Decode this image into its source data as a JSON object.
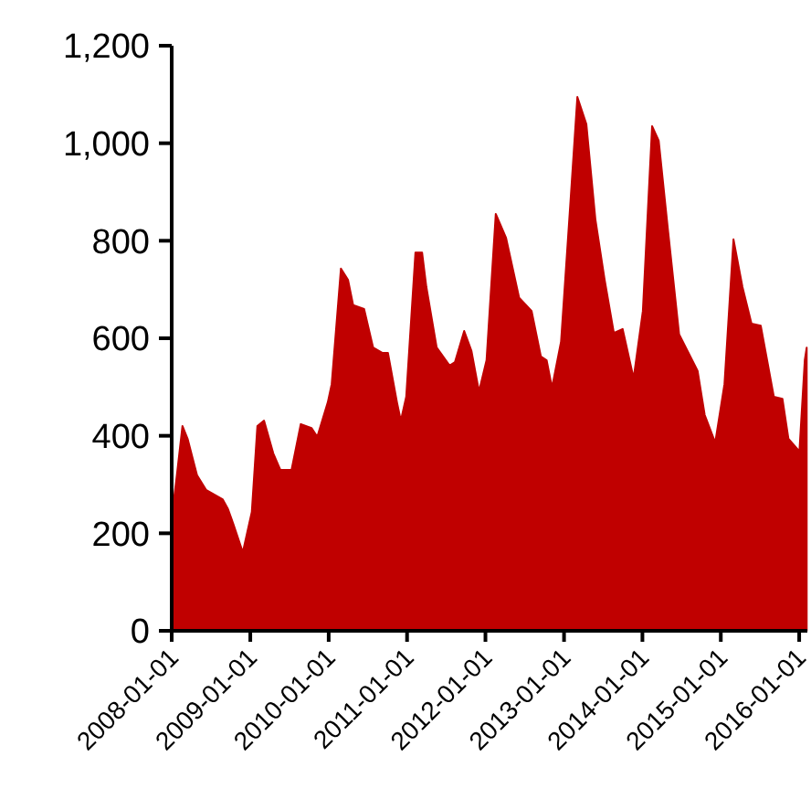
{
  "chart_data": {
    "type": "area",
    "x": [
      "2008-01-01",
      "2008-01-25",
      "2008-02-20",
      "2008-03-15",
      "2008-04-28",
      "2008-06-09",
      "2008-08-25",
      "2008-09-18",
      "2008-10-15",
      "2008-11-27",
      "2009-01-08",
      "2009-02-03",
      "2009-03-06",
      "2009-04-18",
      "2009-05-21",
      "2009-07-12",
      "2009-08-24",
      "2009-10-13",
      "2009-11-09",
      "2009-12-28",
      "2010-01-15",
      "2010-02-27",
      "2010-04-01",
      "2010-04-25",
      "2010-06-15",
      "2010-07-27",
      "2010-09-09",
      "2010-10-04",
      "2010-11-15",
      "2010-12-03",
      "2010-12-28",
      "2011-02-09",
      "2011-03-12",
      "2011-04-01",
      "2011-05-19",
      "2011-07-18",
      "2011-08-12",
      "2011-09-24",
      "2011-10-28",
      "2011-12-02",
      "2012-01-06",
      "2012-02-18",
      "2012-04-06",
      "2012-06-06",
      "2012-08-03",
      "2012-09-15",
      "2012-10-12",
      "2012-11-06",
      "2012-12-18",
      "2013-01-31",
      "2013-03-04",
      "2013-04-15",
      "2013-05-27",
      "2013-07-09",
      "2013-08-21",
      "2013-10-01",
      "2013-11-21",
      "2014-01-03",
      "2014-02-15",
      "2014-03-18",
      "2014-05-01",
      "2014-06-21",
      "2014-09-15",
      "2014-10-18",
      "2014-12-06",
      "2015-01-18",
      "2015-03-01",
      "2015-04-12",
      "2015-05-24",
      "2015-07-06",
      "2015-09-05",
      "2015-10-15",
      "2015-11-12",
      "2016-01-02",
      "2016-01-27",
      "2016-02-05"
    ],
    "series": [
      {
        "color": "#c00000",
        "values": [
          232,
          319,
          420,
          394,
          319,
          289,
          270,
          251,
          218,
          161,
          244,
          420,
          431,
          364,
          330,
          330,
          424,
          416,
          398,
          469,
          506,
          743,
          720,
          668,
          660,
          581,
          570,
          570,
          469,
          431,
          480,
          776,
          776,
          705,
          581,
          544,
          551,
          615,
          574,
          491,
          555,
          855,
          806,
          683,
          656,
          563,
          555,
          499,
          593,
          881,
          1095,
          1039,
          844,
          720,
          611,
          619,
          518,
          656,
          1035,
          1005,
          818,
          608,
          533,
          443,
          386,
          506,
          803,
          705,
          630,
          626,
          480,
          476,
          394,
          368,
          555,
          581
        ]
      }
    ],
    "xlim": [
      "2008-01-01",
      "2016-02-08"
    ],
    "ylim": [
      0,
      1200
    ],
    "yticks": [
      0,
      {
        "value": 200,
        "label": "200"
      },
      {
        "value": 400,
        "label": "400"
      },
      {
        "value": 600,
        "label": "600"
      },
      {
        "value": 800,
        "label": "800"
      },
      {
        "value": 1000,
        "label": "1,000"
      },
      {
        "value": 1200,
        "label": "1,200"
      }
    ],
    "xticks": [
      {
        "value": "2008-01-01",
        "label": "2008-01-01"
      },
      {
        "value": "2009-01-01",
        "label": "2009-01-01"
      },
      {
        "value": "2010-01-01",
        "label": "2010-01-01"
      },
      {
        "value": "2011-01-01",
        "label": "2011-01-01"
      },
      {
        "value": "2012-01-01",
        "label": "2012-01-01"
      },
      {
        "value": "2013-01-01",
        "label": "2013-01-01"
      },
      {
        "value": "2014-01-01",
        "label": "2014-01-01"
      },
      {
        "value": "2015-01-01",
        "label": "2015-01-01"
      },
      {
        "value": "2016-01-01",
        "label": "2016-01-01"
      }
    ],
    "grid": false
  }
}
